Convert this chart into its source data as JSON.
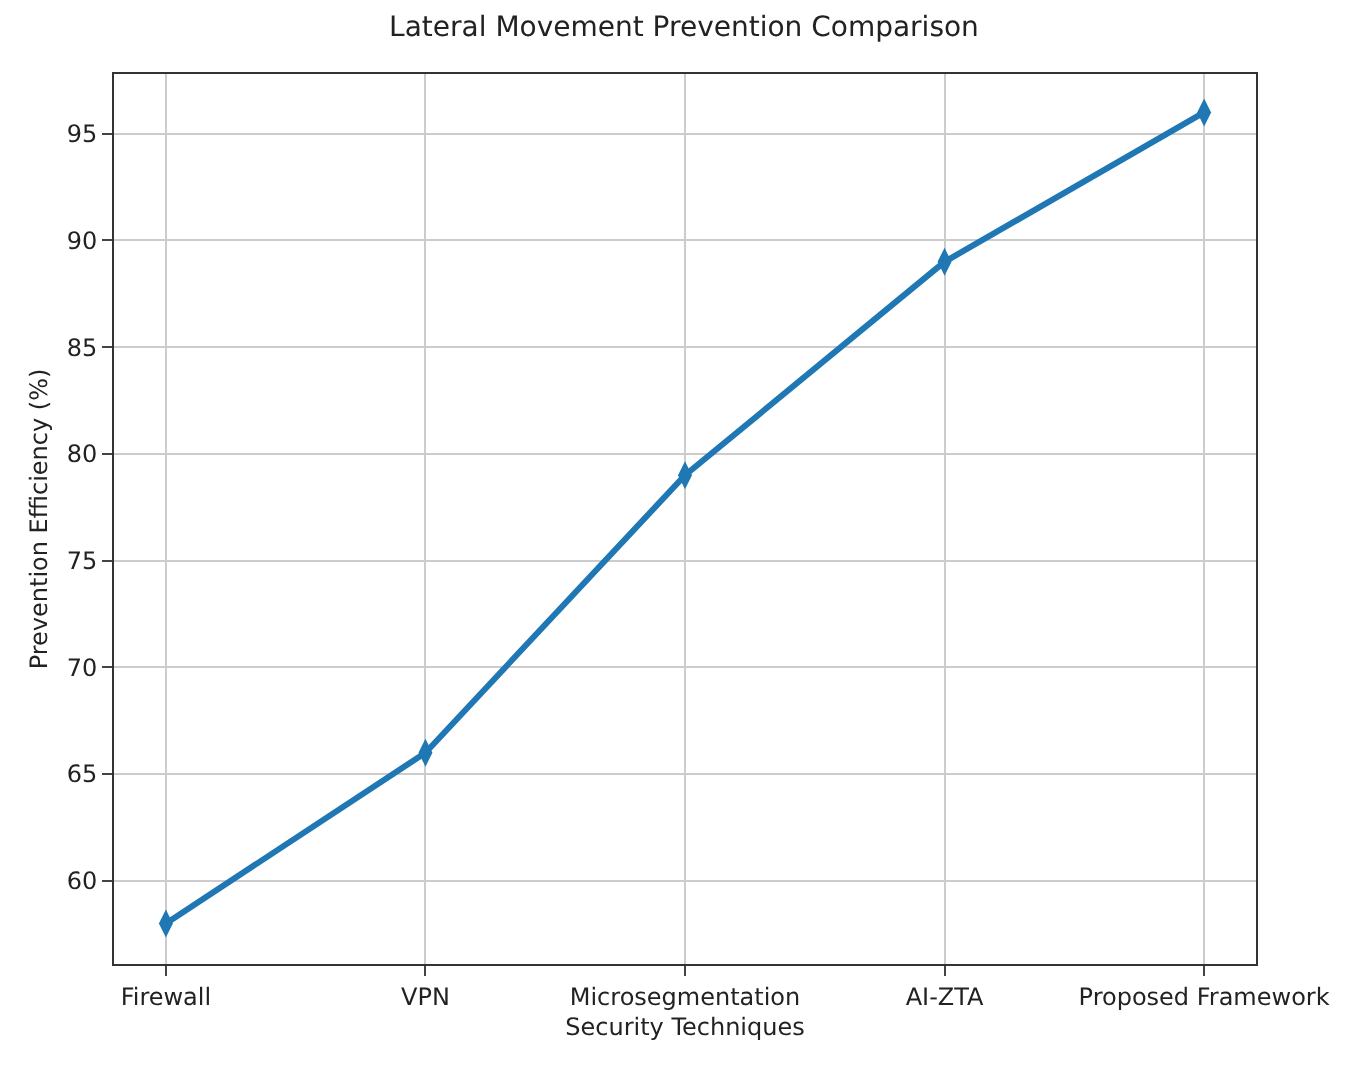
{
  "chart_data": {
    "type": "line",
    "title": "Lateral Movement Prevention Comparison",
    "xlabel": "Security Techniques",
    "ylabel": "Prevention Efficiency (%)",
    "categories": [
      "Firewall",
      "VPN",
      "Microsegmentation",
      "AI-ZTA",
      "Proposed Framework"
    ],
    "series": [
      {
        "color": "#1f77b4",
        "values": [
          58,
          66,
          79,
          89,
          96
        ]
      }
    ],
    "ylim": [
      56.1,
      97.8
    ],
    "yticks": [
      60,
      65,
      70,
      75,
      80,
      85,
      90,
      95
    ],
    "grid": true,
    "marker": "diamond",
    "line_style": "solid"
  }
}
